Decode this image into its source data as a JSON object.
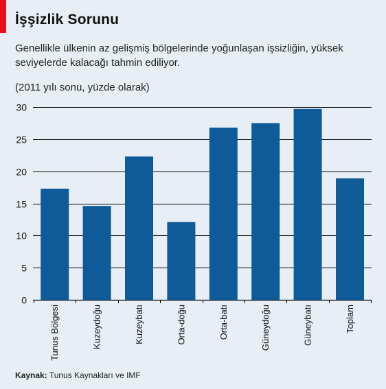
{
  "header": {
    "title": "İşşizlik Sorunu",
    "subtitle": "Genellikle ülkenin az gelişmiş bölgelerinde yoğunlaşan işsizliğin, yüksek seviyelerde kalacağı tahmin ediliyor.",
    "unit_note": "(2011 yılı sonu, yüzde olarak)"
  },
  "footer": {
    "source_label": "Kaynak:",
    "source_text": "Tunus Kaynakları ve IMF"
  },
  "colors": {
    "accent": "#e3121b",
    "bar": "#0f5b9a",
    "background": "#e7eef5"
  },
  "chart_data": {
    "type": "bar",
    "title": "İşşizlik Sorunu",
    "categories": [
      "Tunus Bölgesi",
      "Kuzeydoğu",
      "Kuzeybatı",
      "Orta-doğu",
      "Orta-batı",
      "Güneydoğu",
      "Güneybatı",
      "Toplam"
    ],
    "values": [
      17.3,
      14.6,
      22.3,
      12.1,
      26.8,
      27.5,
      29.7,
      18.9
    ],
    "ylim": [
      0,
      30
    ],
    "yticks": [
      0,
      5,
      10,
      15,
      20,
      25,
      30
    ],
    "grid": true
  }
}
